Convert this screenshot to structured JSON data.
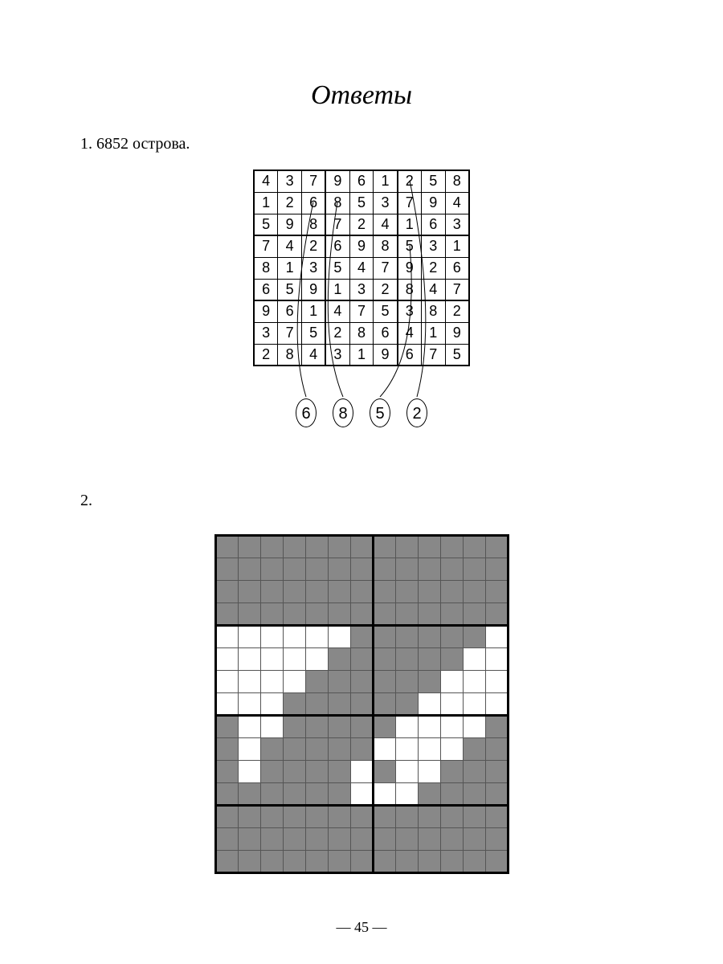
{
  "title": "Ответы",
  "answer1_label": "1. 6852 острова.",
  "answer2_label": "2.",
  "page_number": "— 45 —",
  "sudoku": {
    "cell_size_w": 30,
    "cell_size_h": 27,
    "border_color": "#000000",
    "font_size": 18,
    "grid": [
      [
        4,
        3,
        7,
        9,
        6,
        1,
        2,
        5,
        8
      ],
      [
        1,
        2,
        6,
        8,
        5,
        3,
        7,
        9,
        4
      ],
      [
        5,
        9,
        8,
        7,
        2,
        4,
        1,
        6,
        3
      ],
      [
        7,
        4,
        2,
        6,
        9,
        8,
        5,
        3,
        1
      ],
      [
        8,
        1,
        3,
        5,
        4,
        7,
        9,
        2,
        6
      ],
      [
        6,
        5,
        9,
        1,
        3,
        2,
        8,
        4,
        7
      ],
      [
        9,
        6,
        1,
        4,
        7,
        5,
        3,
        8,
        2
      ],
      [
        3,
        7,
        5,
        2,
        8,
        6,
        4,
        1,
        9
      ],
      [
        2,
        8,
        4,
        3,
        1,
        9,
        6,
        7,
        5
      ]
    ],
    "answer_digits": [
      "6",
      "8",
      "5",
      "2"
    ],
    "curves": [
      {
        "from_row": 1,
        "from_col": 2,
        "to_oval": 0
      },
      {
        "from_row": 1,
        "from_col": 3,
        "to_oval": 1
      },
      {
        "from_row": 3,
        "from_col": 6,
        "to_oval": 2
      },
      {
        "from_row": 0,
        "from_col": 6,
        "to_oval": 3
      }
    ]
  },
  "nonogram": {
    "rows": 15,
    "cols": 13,
    "cell_size": 28,
    "filled_color": "#888888",
    "empty_color": "#ffffff",
    "grid_color": "#555555",
    "thick_color": "#000000",
    "thick_rows": [
      0,
      4,
      8,
      12,
      15
    ],
    "thick_cols": [
      0,
      7,
      13
    ],
    "grid": [
      "1111111111111",
      "1111111111111",
      "1111111111111",
      "1111111111111",
      "0000001111110",
      "0000011111100",
      "0000111111000",
      "0001111110000",
      "1001111100001",
      "1011111000011",
      "1011110100111",
      "1111110001111",
      "1111111111111",
      "1111111111111",
      "1111111111111"
    ]
  }
}
